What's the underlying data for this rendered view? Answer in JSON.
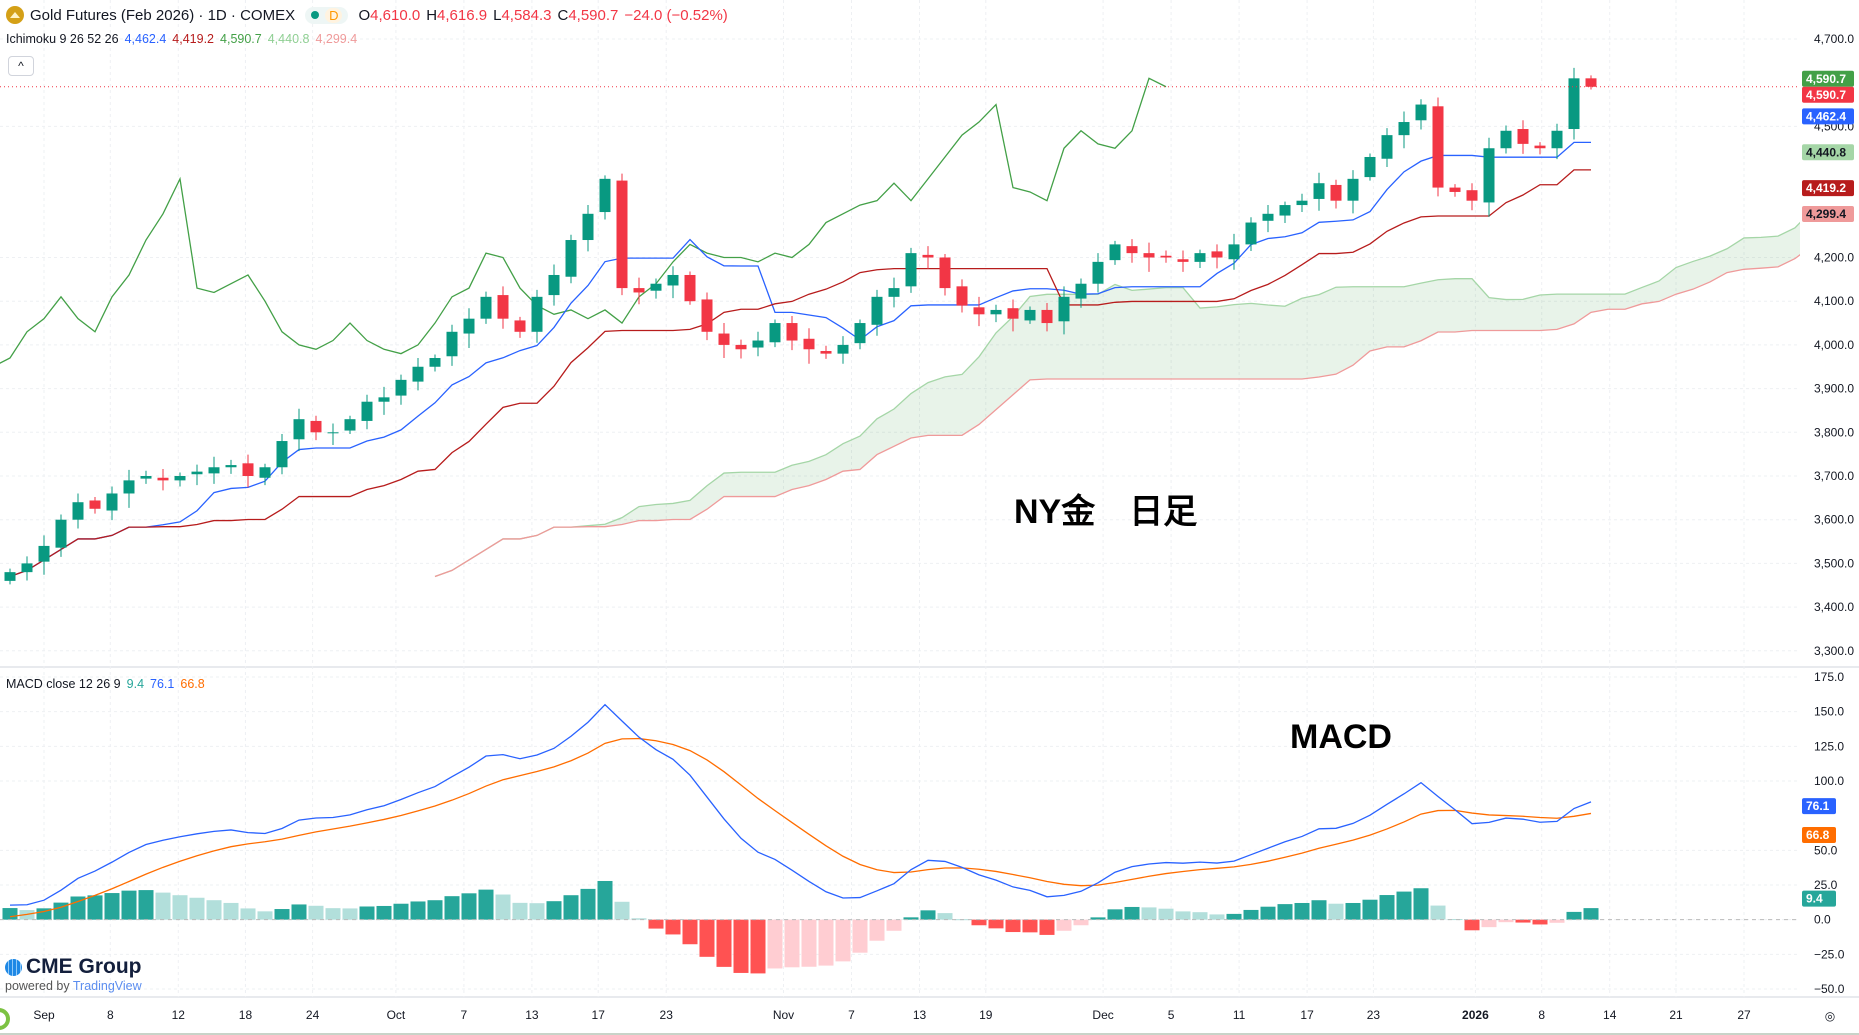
{
  "header": {
    "title": "Gold Futures (Feb 2026) · 1D · COMEX",
    "session": "D",
    "o_label": "O",
    "o": "4,610.0",
    "h_label": "H",
    "h": "4,616.9",
    "l_label": "L",
    "l": "4,584.3",
    "c_label": "C",
    "c": "4,590.7",
    "change": "−24.0 (−0.52%)"
  },
  "ichimoku_legend": {
    "name": "Ichimoku 9 26 52 26",
    "conversion": "4,462.4",
    "base": "4,419.2",
    "lagging": "4,590.7",
    "lead_a": "4,440.8",
    "lead_b": "4,299.4"
  },
  "macd_legend": {
    "name": "MACD close 12 26 9",
    "histogram": "9.4",
    "macd": "76.1",
    "signal": "66.8"
  },
  "collapse_label": "^",
  "annotations": {
    "price_pane": "NY金　日足",
    "macd_pane": "MACD"
  },
  "branding": {
    "name": "CME Group",
    "powered": "powered by",
    "tv": "TradingView"
  },
  "colors": {
    "up": "#089981",
    "down": "#f23645",
    "conversion": "#2962ff",
    "base": "#b71c1c",
    "lagging": "#43a047",
    "lead_a": "#a5d6a7",
    "lead_b": "#ef9a9a",
    "macd": "#2962ff",
    "signal": "#ff6d00",
    "hist_up_strong": "#26a69a",
    "hist_up_weak": "#b2dfdb",
    "hist_down_strong": "#ff5252",
    "hist_down_weak": "#ffcdd2"
  },
  "price_tags": [
    {
      "label": "4,590.7",
      "value": 4590.7,
      "bg": "#43a047",
      "fg": "#fff"
    },
    {
      "label": "4,590.7",
      "value": 4590.7,
      "bg": "#f23645",
      "fg": "#fff",
      "offset": 1
    },
    {
      "label": "4,462.4",
      "value": 4462.4,
      "bg": "#2962ff",
      "fg": "#fff"
    },
    {
      "label": "4,440.8",
      "value": 4440.8,
      "bg": "#a5d6a7",
      "fg": "#131722"
    },
    {
      "label": "4,419.2",
      "value": 4419.2,
      "bg": "#b71c1c",
      "fg": "#fff"
    },
    {
      "label": "4,299.4",
      "value": 4299.4,
      "bg": "#ef9a9a",
      "fg": "#131722"
    }
  ],
  "macd_tags": [
    {
      "label": "76.1",
      "value": 76.1,
      "bg": "#2962ff",
      "fg": "#fff"
    },
    {
      "label": "66.8",
      "value": 66.8,
      "bg": "#ff6d00",
      "fg": "#fff",
      "offset": 1
    },
    {
      "label": "9.4",
      "value": 9.4,
      "bg": "#26a69a",
      "fg": "#fff"
    }
  ],
  "chart_data": {
    "type": "candlestick",
    "title": "Gold Futures (Feb 2026) · 1D · COMEX",
    "closes": [
      3480,
      3500,
      3540,
      3600,
      3640,
      3625,
      3660,
      3690,
      3700,
      3690,
      3700,
      3710,
      3720,
      3725,
      3700,
      3720,
      3780,
      3830,
      3800,
      3800,
      3830,
      3870,
      3880,
      3920,
      3950,
      3970,
      4030,
      4060,
      4110,
      4060,
      4030,
      4110,
      4160,
      4240,
      4300,
      4380,
      4130,
      4120,
      4140,
      4160,
      4100,
      4030,
      4000,
      3990,
      4010,
      4050,
      4010,
      3990,
      3980,
      4000,
      4050,
      4110,
      4130,
      4210,
      4200,
      4130,
      4090,
      4070,
      4080,
      4060,
      4080,
      4050,
      4110,
      4140,
      4190,
      4230,
      4210,
      4200,
      4200,
      4190,
      4210,
      4200,
      4230,
      4280,
      4300,
      4320,
      4330,
      4370,
      4330,
      4380,
      4430,
      4480,
      4510,
      4550,
      4360,
      4350,
      4330,
      4450,
      4490,
      4460,
      4450,
      4490,
      4610,
      4590.7
    ],
    "last_bar": {
      "open": 4610.0,
      "high": 4616.9,
      "low": 4584.3,
      "close": 4590.7
    },
    "current_price": 4590.7,
    "price_axis": {
      "range": [
        3300,
        4700
      ],
      "ticks": [
        {
          "v": 4700,
          "label": "4,700.0"
        },
        {
          "v": 4500,
          "label": "4,500.0"
        },
        {
          "v": 4200,
          "label": "4,200.0"
        },
        {
          "v": 4100,
          "label": "4,100.0"
        },
        {
          "v": 4000,
          "label": "4,000.0"
        },
        {
          "v": 3900,
          "label": "3,900.0"
        },
        {
          "v": 3800,
          "label": "3,800.0"
        },
        {
          "v": 3700,
          "label": "3,700.0"
        },
        {
          "v": 3600,
          "label": "3,600.0"
        },
        {
          "v": 3500,
          "label": "3,500.0"
        },
        {
          "v": 3400,
          "label": "3,400.0"
        },
        {
          "v": 3300,
          "label": "3,300.0"
        }
      ]
    },
    "macd_axis": {
      "range": [
        -60,
        175
      ],
      "ticks": [
        {
          "v": 175,
          "label": "175.0"
        },
        {
          "v": 150,
          "label": "150.0"
        },
        {
          "v": 125,
          "label": "125.0"
        },
        {
          "v": 100,
          "label": "100.0"
        },
        {
          "v": 50,
          "label": "50.0"
        },
        {
          "v": 25,
          "label": "25.0"
        },
        {
          "v": 0,
          "label": "0.0"
        },
        {
          "v": -25,
          "label": "−25.0"
        },
        {
          "v": -50,
          "label": "−50.0"
        }
      ]
    },
    "time_axis": [
      {
        "label": "Sep",
        "index": 2
      },
      {
        "label": "8",
        "index": 5.9
      },
      {
        "label": "12",
        "index": 9.9
      },
      {
        "label": "18",
        "index": 13.85
      },
      {
        "label": "24",
        "index": 17.8
      },
      {
        "label": "Oct",
        "index": 22.7
      },
      {
        "label": "7",
        "index": 26.7
      },
      {
        "label": "13",
        "index": 30.7
      },
      {
        "label": "17",
        "index": 34.6
      },
      {
        "label": "23",
        "index": 38.6
      },
      {
        "label": "Nov",
        "index": 45.5
      },
      {
        "label": "7",
        "index": 49.5
      },
      {
        "label": "13",
        "index": 53.5
      },
      {
        "label": "19",
        "index": 57.4
      },
      {
        "label": "Dec",
        "index": 64.3
      },
      {
        "label": "5",
        "index": 68.3
      },
      {
        "label": "11",
        "index": 72.3
      },
      {
        "label": "17",
        "index": 76.3
      },
      {
        "label": "23",
        "index": 80.2
      },
      {
        "label": "2026",
        "index": 86.2,
        "bold": true
      },
      {
        "label": "8",
        "index": 90.1
      },
      {
        "label": "14",
        "index": 94.1
      },
      {
        "label": "21",
        "index": 98
      },
      {
        "label": "27",
        "index": 102
      }
    ],
    "ichimoku": {
      "conversion": 9,
      "base": 26,
      "span_b": 52,
      "displacement": 26
    },
    "macd": {
      "fast": 12,
      "slow": 26,
      "signal": 9
    }
  }
}
